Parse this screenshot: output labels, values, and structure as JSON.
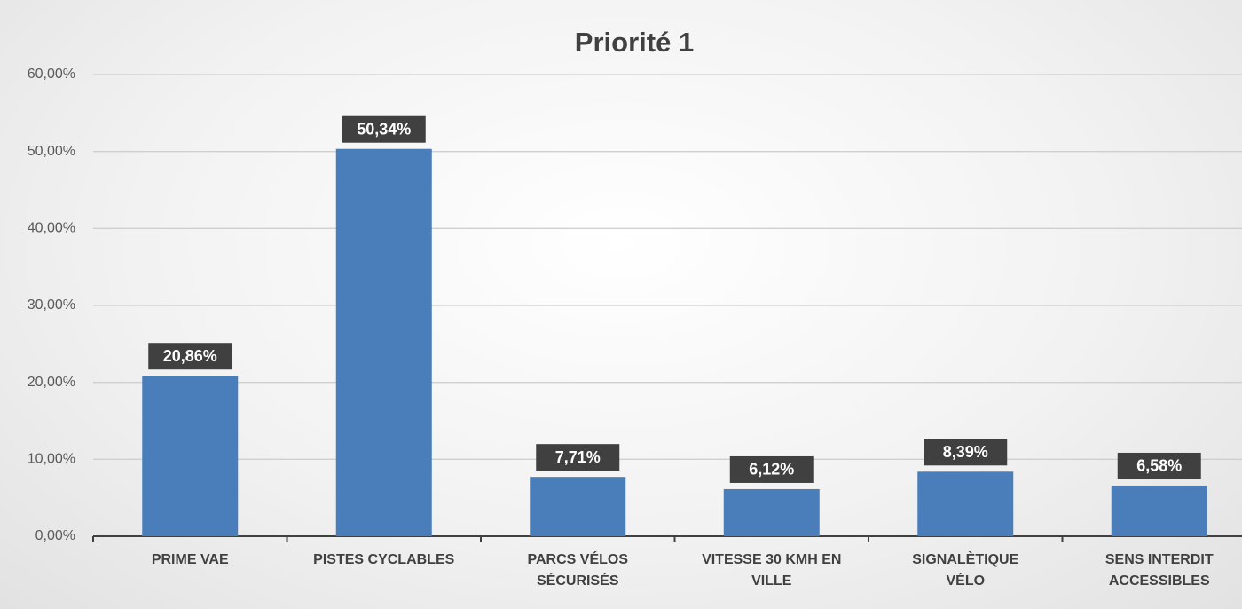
{
  "chart_data": {
    "type": "bar",
    "title": "Priorité 1",
    "categories": [
      "PRIME VAE",
      "PISTES CYCLABLES",
      "PARCS VÉLOS\nSÉCURISÉS",
      "VITESSE 30 KMH EN\nVILLE",
      "SIGNALÈTIQUE\nVÉLO",
      "SENS INTERDIT\nACCESSIBLES"
    ],
    "values": [
      20.86,
      50.34,
      7.71,
      6.12,
      8.39,
      6.58
    ],
    "value_labels": [
      "20,86%",
      "50,34%",
      "7,71%",
      "6,12%",
      "8,39%",
      "6,58%"
    ],
    "color": "#4a7ebb",
    "ylim": [
      0,
      60
    ],
    "yticks": [
      {
        "value": 0,
        "label": "0,00%"
      },
      {
        "value": 10,
        "label": "10,00%"
      },
      {
        "value": 20,
        "label": "20,00%"
      },
      {
        "value": 30,
        "label": "30,00%"
      },
      {
        "value": 40,
        "label": "40,00%"
      },
      {
        "value": 50,
        "label": "50,00%"
      },
      {
        "value": 60,
        "label": "60,00%"
      }
    ],
    "grid": true
  }
}
